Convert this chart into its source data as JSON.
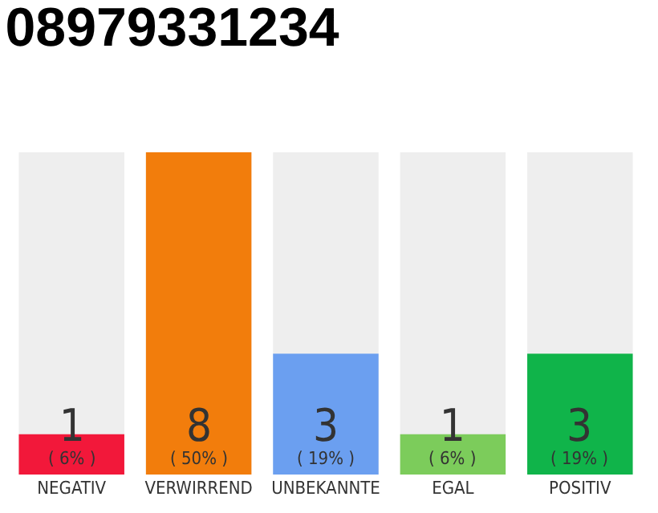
{
  "chart_data": {
    "type": "bar",
    "title": "08979331234",
    "categories": [
      "NEGATIV",
      "VERWIRREND",
      "UNBEKANNTE",
      "EGAL",
      "POSITIV"
    ],
    "values": [
      1,
      8,
      3,
      1,
      3
    ],
    "colors": [
      "#f2183a",
      "#f27d0c",
      "#6b9ff0",
      "#7ccc5b",
      "#10b44a"
    ],
    "value_labels": [
      "1\n( 6% )",
      "8\n( 50% )",
      "3\n( 19% )",
      "1\n( 6% )",
      "3\n( 19% )"
    ],
    "data_labels": false
  }
}
